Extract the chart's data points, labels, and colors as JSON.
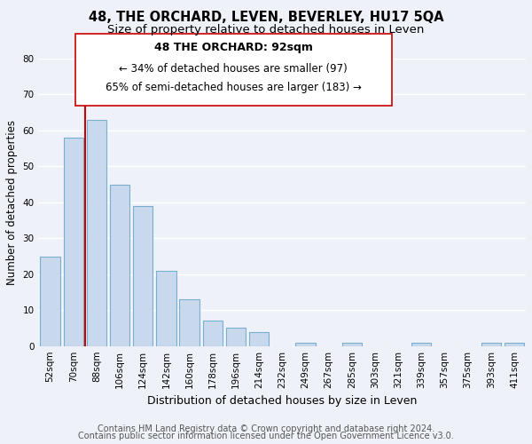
{
  "title": "48, THE ORCHARD, LEVEN, BEVERLEY, HU17 5QA",
  "subtitle": "Size of property relative to detached houses in Leven",
  "xlabel": "Distribution of detached houses by size in Leven",
  "ylabel": "Number of detached properties",
  "bar_labels": [
    "52sqm",
    "70sqm",
    "88sqm",
    "106sqm",
    "124sqm",
    "142sqm",
    "160sqm",
    "178sqm",
    "196sqm",
    "214sqm",
    "232sqm",
    "249sqm",
    "267sqm",
    "285sqm",
    "303sqm",
    "321sqm",
    "339sqm",
    "357sqm",
    "375sqm",
    "393sqm",
    "411sqm"
  ],
  "bar_values": [
    25,
    58,
    63,
    45,
    39,
    21,
    13,
    7,
    5,
    4,
    0,
    1,
    0,
    1,
    0,
    0,
    1,
    0,
    0,
    1,
    1
  ],
  "bar_color": "#c8d9ed",
  "bar_edge_color": "#7aaed0",
  "highlight_index": 2,
  "highlight_line_color": "#cc0000",
  "ylim": [
    0,
    80
  ],
  "yticks": [
    0,
    10,
    20,
    30,
    40,
    50,
    60,
    70,
    80
  ],
  "annotation_title": "48 THE ORCHARD: 92sqm",
  "annotation_line1": "← 34% of detached houses are smaller (97)",
  "annotation_line2": "65% of semi-detached houses are larger (183) →",
  "annotation_box_color": "#ffffff",
  "annotation_box_edge": "#cc0000",
  "footer_line1": "Contains HM Land Registry data © Crown copyright and database right 2024.",
  "footer_line2": "Contains public sector information licensed under the Open Government Licence v3.0.",
  "bg_color": "#eef2f8",
  "plot_bg_color": "#eef2f8",
  "title_fontsize": 10.5,
  "subtitle_fontsize": 9.5,
  "xlabel_fontsize": 9,
  "ylabel_fontsize": 8.5,
  "tick_fontsize": 7.5,
  "annotation_title_fontsize": 9,
  "annotation_text_fontsize": 8.5,
  "footer_fontsize": 7
}
